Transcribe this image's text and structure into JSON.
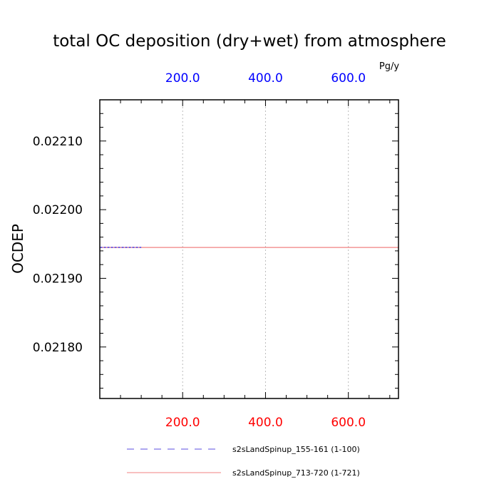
{
  "chart_data": {
    "type": "line",
    "title": "total OC deposition (dry+wet) from atmosphere",
    "ylabel": "OCDEP",
    "units": "Pg/y",
    "xlim": [
      0,
      721
    ],
    "ylim": [
      0.021725,
      0.02216
    ],
    "x_ticks": [
      200,
      400,
      600
    ],
    "x_tick_labels": [
      "200.0",
      "400.0",
      "600.0"
    ],
    "x_bottom_color": "#ff0000",
    "x_top_color": "#0000ff",
    "y_ticks": [
      0.0221,
      0.022,
      0.0219,
      0.0218
    ],
    "y_tick_labels": [
      "0.02210",
      "0.02200",
      "0.02190",
      "0.02180"
    ],
    "grid": "vertical-dotted",
    "legend_position": "bottom",
    "series": [
      {
        "name": "s2sLandSpinup_155-161 (1-100)",
        "x": [
          1,
          100
        ],
        "y": [
          0.021945,
          0.021945
        ],
        "color": "#5b4de0",
        "dash": "dashed"
      },
      {
        "name": "s2sLandSpinup_713-720 (1-721)",
        "x": [
          1,
          721
        ],
        "y": [
          0.021945,
          0.021945
        ],
        "color": "#f08080",
        "dash": "solid"
      }
    ]
  }
}
